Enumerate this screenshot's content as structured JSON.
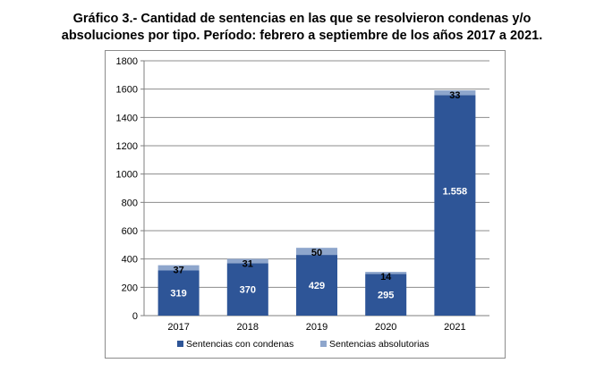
{
  "chart_data": {
    "type": "bar",
    "stacked": true,
    "title_line1": "Gráfico 3.- Cantidad de sentencias en las que se resolvieron condenas y/o",
    "title_line2": "absoluciones por tipo. Período: febrero a septiembre de los años 2017 a 2021.",
    "categories": [
      "2017",
      "2018",
      "2019",
      "2020",
      "2021"
    ],
    "series": [
      {
        "name": "Sentencias con condenas",
        "values": [
          319,
          370,
          429,
          295,
          1558
        ],
        "labels": [
          "319",
          "370",
          "429",
          "295",
          "1.558"
        ],
        "color": "#2E5597"
      },
      {
        "name": "Sentencias absolutorias",
        "values": [
          37,
          31,
          50,
          14,
          33
        ],
        "labels": [
          "37",
          "31",
          "50",
          "14",
          "33"
        ],
        "color": "#8EA6CC"
      }
    ],
    "yticks": [
      "0",
      "200",
      "400",
      "600",
      "800",
      "1000",
      "1200",
      "1400",
      "1600",
      "1800"
    ],
    "ylim": [
      0,
      1800
    ],
    "grid": true,
    "legend_position": "bottom"
  }
}
